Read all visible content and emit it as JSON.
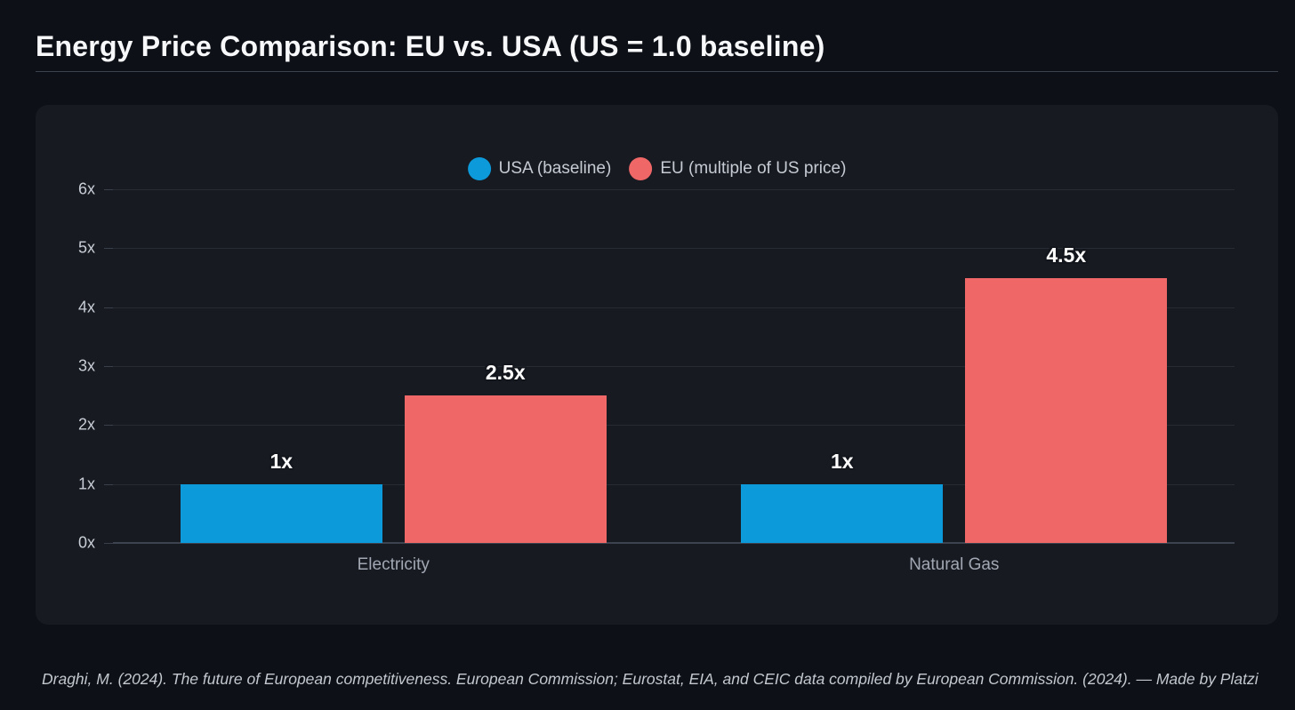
{
  "page": {
    "title": "Energy Price Comparison: EU vs. USA (US = 1.0 baseline)",
    "footer": "Draghi, M. (2024). The future of European competitiveness. European Commission; Eurostat, EIA, and CEIC data compiled by European Commission. (2024). — Made by Platzi"
  },
  "colors": {
    "page_background": "#0d1016",
    "card_background": "#171a21",
    "usa_series": "#0c9adb",
    "eu_series": "#f06767",
    "gridline": "#272c34",
    "zero_line": "#3c434e"
  },
  "chart_data": {
    "type": "bar",
    "title": "Energy Price Comparison: EU vs. USA (US = 1.0 baseline)",
    "categories": [
      "Electricity",
      "Natural Gas"
    ],
    "series": [
      {
        "name": "USA (baseline)",
        "color": "#0c9adb",
        "values": [
          1,
          1
        ],
        "labels": [
          "1x",
          "1x"
        ]
      },
      {
        "name": "EU (multiple of US price)",
        "color": "#f06767",
        "values": [
          2.5,
          4.5
        ],
        "labels": [
          "2.5x",
          "4.5x"
        ]
      }
    ],
    "xlabel": "",
    "ylabel": "",
    "ylim": [
      0,
      6
    ],
    "yticks": [
      {
        "value": 0,
        "label": "0x"
      },
      {
        "value": 1,
        "label": "1x"
      },
      {
        "value": 2,
        "label": "2x"
      },
      {
        "value": 3,
        "label": "3x"
      },
      {
        "value": 4,
        "label": "4x"
      },
      {
        "value": 5,
        "label": "5x"
      },
      {
        "value": 6,
        "label": "6x"
      }
    ],
    "grid": true,
    "legend_position": "top-center"
  }
}
